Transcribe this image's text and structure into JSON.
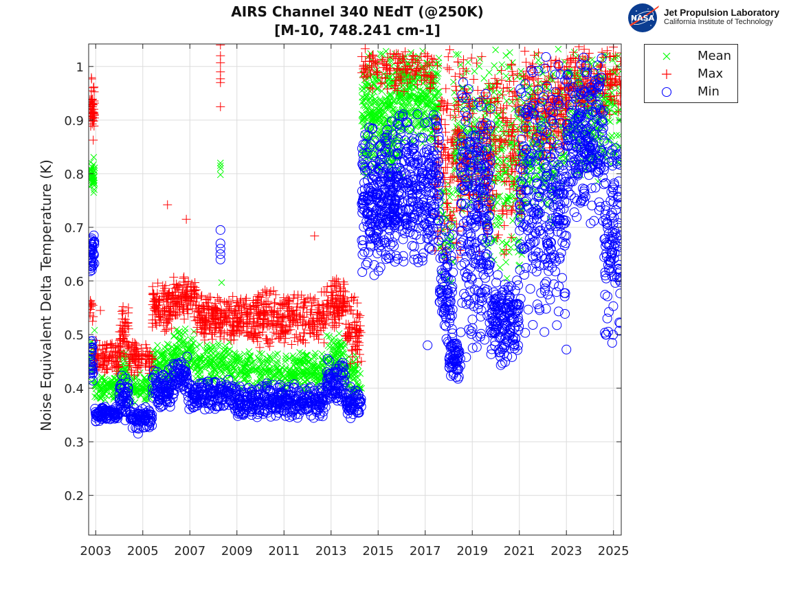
{
  "logo": {
    "agency": "NASA",
    "name": "Jet Propulsion Laboratory",
    "subtitle": "California Institute of Technology"
  },
  "chart_data": {
    "type": "scatter",
    "title": [
      "AIRS Channel 340 NEdT (@250K)",
      "[M-10, 748.241 cm-1]"
    ],
    "xlabel": "",
    "ylabel": "Noise Equivalent Delta Temperature (K)",
    "xlim": [
      2002.7,
      2025.33
    ],
    "ylim": [
      0.126,
      1.042
    ],
    "grid": true,
    "legend_position": "outside-top-right",
    "x_ticks": [
      2003,
      2005,
      2007,
      2009,
      2011,
      2013,
      2015,
      2017,
      2019,
      2021,
      2023,
      2025
    ],
    "x_tick_labels": [
      "2003",
      "2005",
      "2007",
      "2009",
      "2011",
      "2013",
      "2015",
      "2017",
      "2019",
      "2021",
      "2023",
      "2025"
    ],
    "y_ticks": [
      0.2,
      0.3,
      0.4,
      0.5,
      0.6,
      0.7,
      0.8,
      0.9,
      1.0
    ],
    "y_tick_labels": [
      "0.2",
      "0.3",
      "0.4",
      "0.5",
      "0.6",
      "0.7",
      "0.8",
      "0.9",
      "1"
    ],
    "series": [
      {
        "name": "Mean",
        "marker": "x",
        "color": "#00ff00",
        "bands": [
          {
            "x": [
              2002.75,
              2002.95
            ],
            "lo": 0.75,
            "hi": 0.84,
            "n": 40
          },
          {
            "x": [
              2002.75,
              2002.95
            ],
            "lo": 0.4,
            "hi": 0.51,
            "n": 20
          },
          {
            "x": [
              2002.95,
              2004.0
            ],
            "lo": 0.375,
            "hi": 0.43,
            "n": 90
          },
          {
            "x": [
              2004.0,
              2004.4
            ],
            "lo": 0.39,
            "hi": 0.48,
            "n": 40
          },
          {
            "x": [
              2004.4,
              2005.4
            ],
            "lo": 0.37,
            "hi": 0.43,
            "n": 80
          },
          {
            "x": [
              2005.4,
              2006.3
            ],
            "lo": 0.4,
            "hi": 0.49,
            "n": 90
          },
          {
            "x": [
              2006.3,
              2007.2
            ],
            "lo": 0.42,
            "hi": 0.52,
            "n": 90
          },
          {
            "x": [
              2007.2,
              2009.0
            ],
            "lo": 0.4,
            "hi": 0.49,
            "n": 160
          },
          {
            "x": [
              2009.0,
              2012.8
            ],
            "lo": 0.39,
            "hi": 0.47,
            "n": 320
          },
          {
            "x": [
              2012.8,
              2013.6
            ],
            "lo": 0.41,
            "hi": 0.51,
            "n": 80
          },
          {
            "x": [
              2013.6,
              2014.3
            ],
            "lo": 0.38,
            "hi": 0.47,
            "n": 60
          },
          {
            "x": [
              2014.3,
              2016.0
            ],
            "lo": 0.78,
            "hi": 1.04,
            "n": 360
          },
          {
            "x": [
              2016.0,
              2017.6
            ],
            "lo": 0.84,
            "hi": 1.04,
            "n": 280
          },
          {
            "x": [
              2017.6,
              2018.2
            ],
            "lo": 0.55,
            "hi": 0.82,
            "n": 50
          },
          {
            "x": [
              2018.2,
              2019.5
            ],
            "lo": 0.7,
            "hi": 1.04,
            "n": 150
          },
          {
            "x": [
              2019.5,
              2021.2
            ],
            "lo": 0.6,
            "hi": 1.04,
            "n": 260
          },
          {
            "x": [
              2021.2,
              2023.0
            ],
            "lo": 0.7,
            "hi": 1.04,
            "n": 220
          },
          {
            "x": [
              2023.0,
              2025.3
            ],
            "lo": 0.78,
            "hi": 1.04,
            "n": 280
          }
        ],
        "outliers": [
          [
            2008.3,
            0.82
          ],
          [
            2008.3,
            0.815
          ],
          [
            2008.3,
            0.81
          ],
          [
            2008.3,
            0.798
          ],
          [
            2008.35,
            0.597
          ],
          [
            2002.95,
            0.508
          ]
        ]
      },
      {
        "name": "Max",
        "marker": "+",
        "color": "#ff0000",
        "bands": [
          {
            "x": [
              2002.75,
              2002.95
            ],
            "lo": 0.85,
            "hi": 0.99,
            "n": 50
          },
          {
            "x": [
              2002.75,
              2002.9
            ],
            "lo": 0.52,
            "hi": 0.57,
            "n": 12
          },
          {
            "x": [
              2002.95,
              2004.0
            ],
            "lo": 0.425,
            "hi": 0.49,
            "n": 90
          },
          {
            "x": [
              2004.0,
              2004.4
            ],
            "lo": 0.44,
            "hi": 0.565,
            "n": 50
          },
          {
            "x": [
              2004.4,
              2005.4
            ],
            "lo": 0.42,
            "hi": 0.49,
            "n": 80
          },
          {
            "x": [
              2005.4,
              2006.3
            ],
            "lo": 0.5,
            "hi": 0.6,
            "n": 100
          },
          {
            "x": [
              2006.3,
              2007.3
            ],
            "lo": 0.52,
            "hi": 0.615,
            "n": 100
          },
          {
            "x": [
              2007.3,
              2009.0
            ],
            "lo": 0.48,
            "hi": 0.58,
            "n": 180
          },
          {
            "x": [
              2009.0,
              2012.8
            ],
            "lo": 0.47,
            "hi": 0.59,
            "n": 360
          },
          {
            "x": [
              2012.8,
              2013.6
            ],
            "lo": 0.51,
            "hi": 0.615,
            "n": 90
          },
          {
            "x": [
              2013.6,
              2014.3
            ],
            "lo": 0.44,
            "hi": 0.59,
            "n": 70
          },
          {
            "x": [
              2014.3,
              2017.4
            ],
            "lo": 0.95,
            "hi": 1.04,
            "n": 140
          },
          {
            "x": [
              2017.4,
              2018.4
            ],
            "lo": 0.62,
            "hi": 1.04,
            "n": 120
          },
          {
            "x": [
              2018.4,
              2021.2
            ],
            "lo": 0.64,
            "hi": 1.04,
            "n": 300
          },
          {
            "x": [
              2021.2,
              2023.0
            ],
            "lo": 0.82,
            "hi": 1.04,
            "n": 180
          },
          {
            "x": [
              2023.0,
              2025.33
            ],
            "lo": 0.9,
            "hi": 1.04,
            "n": 160
          }
        ],
        "outliers": [
          [
            2006.05,
            0.742
          ],
          [
            2006.85,
            0.715
          ],
          [
            2012.3,
            0.684
          ],
          [
            2008.3,
            1.04
          ],
          [
            2008.3,
            1.02
          ],
          [
            2008.3,
            1.007
          ],
          [
            2008.3,
            0.99
          ],
          [
            2008.3,
            0.977
          ],
          [
            2008.3,
            0.97
          ],
          [
            2008.3,
            0.925
          ],
          [
            2003.2,
            0.545
          ]
        ]
      },
      {
        "name": "Min",
        "marker": "o",
        "color": "#0000ff",
        "bands": [
          {
            "x": [
              2002.75,
              2002.95
            ],
            "lo": 0.61,
            "hi": 0.7,
            "n": 40
          },
          {
            "x": [
              2002.75,
              2002.9
            ],
            "lo": 0.39,
            "hi": 0.5,
            "n": 25
          },
          {
            "x": [
              2002.95,
              2004.0
            ],
            "lo": 0.335,
            "hi": 0.37,
            "n": 90
          },
          {
            "x": [
              2004.0,
              2004.4
            ],
            "lo": 0.33,
            "hi": 0.43,
            "n": 50
          },
          {
            "x": [
              2004.4,
              2005.4
            ],
            "lo": 0.32,
            "hi": 0.37,
            "n": 80
          },
          {
            "x": [
              2005.4,
              2006.3
            ],
            "lo": 0.36,
            "hi": 0.44,
            "n": 90
          },
          {
            "x": [
              2006.3,
              2006.9
            ],
            "lo": 0.38,
            "hi": 0.46,
            "n": 60
          },
          {
            "x": [
              2006.9,
              2009.0
            ],
            "lo": 0.355,
            "hi": 0.42,
            "n": 160
          },
          {
            "x": [
              2009.0,
              2012.8
            ],
            "lo": 0.34,
            "hi": 0.41,
            "n": 320
          },
          {
            "x": [
              2012.8,
              2013.6
            ],
            "lo": 0.37,
            "hi": 0.46,
            "n": 80
          },
          {
            "x": [
              2013.6,
              2014.3
            ],
            "lo": 0.34,
            "hi": 0.41,
            "n": 60
          },
          {
            "x": [
              2014.3,
              2015.8
            ],
            "lo": 0.6,
            "hi": 0.9,
            "n": 300
          },
          {
            "x": [
              2015.8,
              2017.6
            ],
            "lo": 0.62,
            "hi": 0.93,
            "n": 280
          },
          {
            "x": [
              2017.6,
              2018.2
            ],
            "lo": 0.45,
            "hi": 0.72,
            "n": 80
          },
          {
            "x": [
              2018.0,
              2018.5
            ],
            "lo": 0.41,
            "hi": 0.5,
            "n": 60
          },
          {
            "x": [
              2018.5,
              2019.8
            ],
            "lo": 0.45,
            "hi": 1.0,
            "n": 260
          },
          {
            "x": [
              2019.8,
              2021.0
            ],
            "lo": 0.44,
            "hi": 0.62,
            "n": 160
          },
          {
            "x": [
              2021.0,
              2023.0
            ],
            "lo": 0.48,
            "hi": 1.04,
            "n": 300
          },
          {
            "x": [
              2023.0,
              2024.6
            ],
            "lo": 0.7,
            "hi": 1.04,
            "n": 240
          },
          {
            "x": [
              2024.6,
              2025.3
            ],
            "lo": 0.47,
            "hi": 0.9,
            "n": 120
          }
        ],
        "outliers": [
          [
            2008.3,
            0.695
          ],
          [
            2008.3,
            0.67
          ],
          [
            2008.3,
            0.66
          ],
          [
            2008.3,
            0.65
          ],
          [
            2008.3,
            0.64
          ],
          [
            2004.8,
            0.315
          ],
          [
            2023.0,
            0.472
          ],
          [
            2017.1,
            0.48
          ]
        ]
      }
    ]
  }
}
